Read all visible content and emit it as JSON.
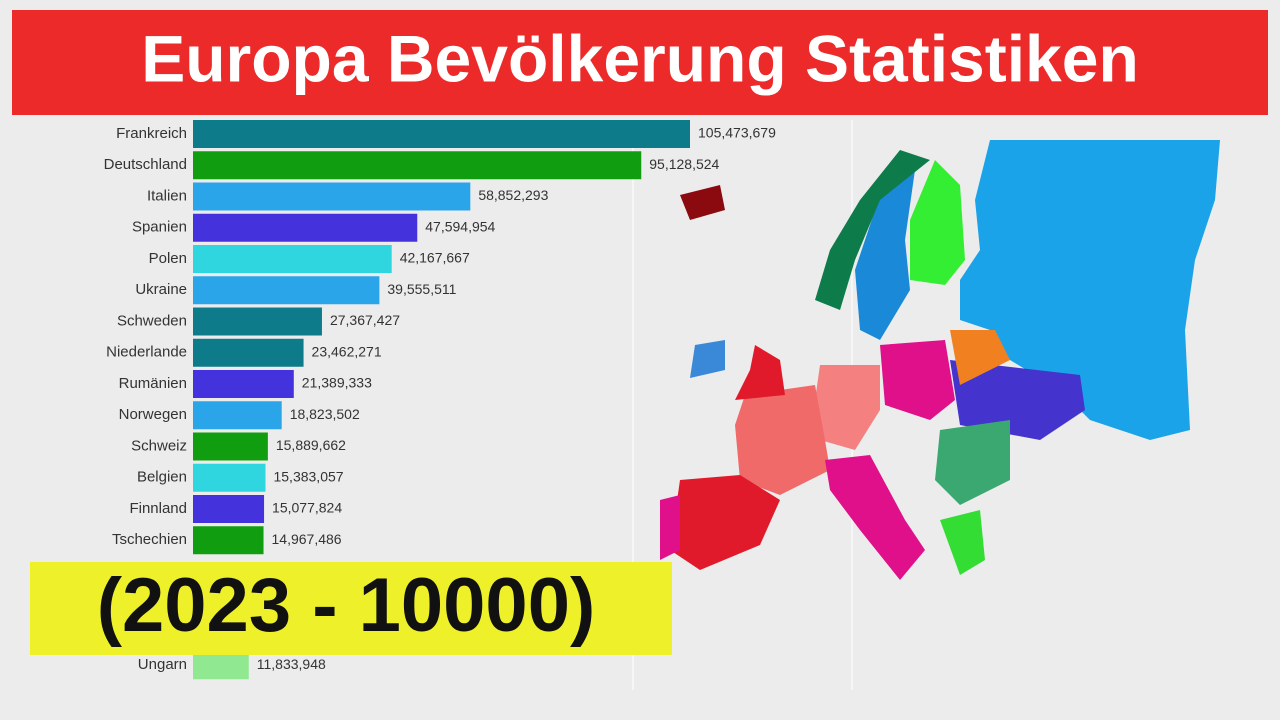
{
  "chart_data": {
    "type": "bar",
    "orientation": "horizontal",
    "title": "Europa Bevölkerung Statistiken",
    "annotation": "(2023 - 10000)",
    "categories": [
      "Frankreich",
      "Deutschland",
      "Italien",
      "Spanien",
      "Polen",
      "Ukraine",
      "Schweden",
      "Niederlande",
      "Rumänien",
      "Norwegen",
      "Schweiz",
      "Belgien",
      "Finnland",
      "Tschechien",
      null,
      null,
      null,
      "Ungarn"
    ],
    "values": [
      105473679,
      95128524,
      58852293,
      47594954,
      42167667,
      39555511,
      27367427,
      23462271,
      21389333,
      18823502,
      15889662,
      15383057,
      15077824,
      14967486,
      null,
      null,
      null,
      11833948
    ],
    "value_labels": [
      "105,473,679",
      "95,128,524",
      "58,852,293",
      "47,594,954",
      "42,167,667",
      "39,555,511",
      "27,367,427",
      "23,462,271",
      "21,389,333",
      "18,823,502",
      "15,889,662",
      "15,383,057",
      "15,077,824",
      "14,967,486",
      null,
      null,
      null,
      "11,833,948"
    ],
    "colors": [
      "#0e7b8a",
      "#109e10",
      "#2aa5ea",
      "#4433dd",
      "#2fd6e0",
      "#2aa5ea",
      "#0e7b8a",
      "#0e7b8a",
      "#4433dd",
      "#2aa5ea",
      "#109e10",
      "#2fd6e0",
      "#4433dd",
      "#109e10",
      null,
      null,
      null,
      "#90e890"
    ]
  }
}
